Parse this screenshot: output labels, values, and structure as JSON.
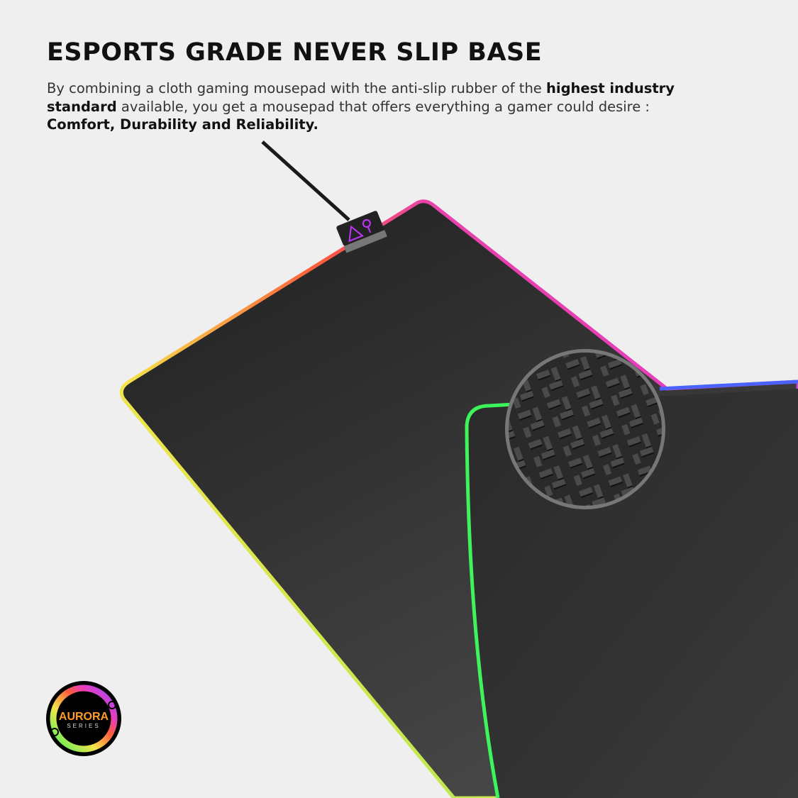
{
  "headline": "ESPORTS GRADE NEVER SLIP BASE",
  "description": {
    "part1": "By combining a cloth gaming mousepad with the anti-slip rubber of the ",
    "bold1": "highest industry standard",
    "part2": " available, you get a mousepad that offers everything a gamer could desire : ",
    "bold2": "Comfort, Durability and Reliability."
  },
  "badge": {
    "brand": "AURORA",
    "sub": "SERIES"
  },
  "colors": {
    "background": "#efefef",
    "pad": "#2b2b2b",
    "edge_green": "#3df55a",
    "edge_purple": "#b04cff",
    "edge_yellow": "#f2e04a"
  }
}
